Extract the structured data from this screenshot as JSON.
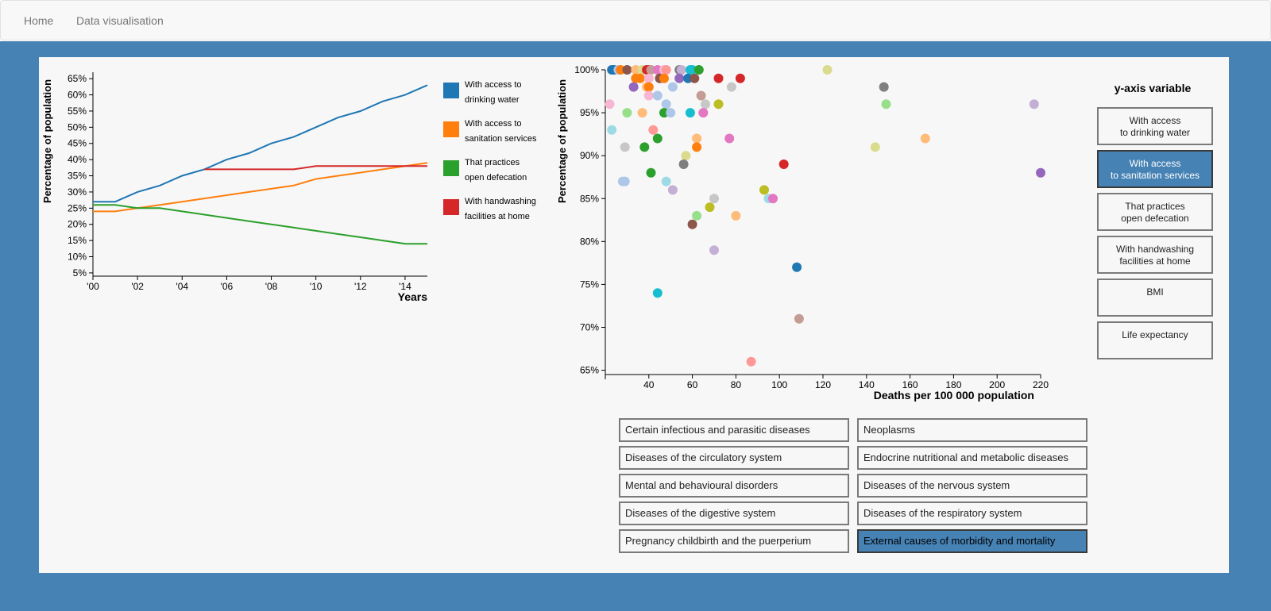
{
  "nav": {
    "home": "Home",
    "dataviz": "Data visualisation"
  },
  "colors": {
    "accent": "#4682b4",
    "water": "#1f77b4",
    "sanitation": "#ff7f0e",
    "defecation": "#2ca02c",
    "handwashing": "#d62728"
  },
  "line_chart_data": {
    "type": "line",
    "ylabel": "Percentage of population",
    "xlabel": "Years",
    "x_ticks": [
      "'00",
      "'02",
      "'04",
      "'06",
      "'08",
      "'10",
      "'12",
      "'14"
    ],
    "y_ticks": [
      "5%",
      "10%",
      "15%",
      "20%",
      "25%",
      "30%",
      "35%",
      "40%",
      "45%",
      "50%",
      "55%",
      "60%",
      "65%"
    ],
    "ylim": [
      4,
      67
    ],
    "xlim": [
      2000,
      2015
    ],
    "series": [
      {
        "name": "With access to drinking water",
        "color": "#1f77b4",
        "x": [
          2000,
          2001,
          2002,
          2003,
          2004,
          2005,
          2006,
          2007,
          2008,
          2009,
          2010,
          2011,
          2012,
          2013,
          2014,
          2015
        ],
        "values": [
          27,
          27,
          30,
          32,
          35,
          37,
          40,
          42,
          45,
          47,
          50,
          53,
          55,
          58,
          60,
          63
        ]
      },
      {
        "name": "With access to sanitation services",
        "color": "#ff7f0e",
        "x": [
          2000,
          2001,
          2002,
          2003,
          2004,
          2005,
          2006,
          2007,
          2008,
          2009,
          2010,
          2011,
          2012,
          2013,
          2014,
          2015
        ],
        "values": [
          24,
          24,
          25,
          26,
          27,
          28,
          29,
          30,
          31,
          32,
          34,
          35,
          36,
          37,
          38,
          39
        ]
      },
      {
        "name": "That practices open defecation",
        "color": "#2ca02c",
        "x": [
          2000,
          2001,
          2002,
          2003,
          2004,
          2005,
          2006,
          2007,
          2008,
          2009,
          2010,
          2011,
          2012,
          2013,
          2014,
          2015
        ],
        "values": [
          26,
          26,
          25,
          25,
          24,
          23,
          22,
          21,
          20,
          19,
          18,
          17,
          16,
          15,
          14,
          14
        ]
      },
      {
        "name": "With handwashing facilities at home",
        "color": "#d62728",
        "x": [
          2005,
          2006,
          2007,
          2008,
          2009,
          2010,
          2011,
          2012,
          2013,
          2014,
          2015
        ],
        "values": [
          37,
          37,
          37,
          37,
          37,
          38,
          38,
          38,
          38,
          38,
          38
        ]
      }
    ],
    "legend": [
      {
        "line1": "With access to",
        "line2": "drinking water",
        "color": "#1f77b4"
      },
      {
        "line1": "With access to",
        "line2": "sanitation services",
        "color": "#ff7f0e"
      },
      {
        "line1": "That practices",
        "line2": "open defecation",
        "color": "#2ca02c"
      },
      {
        "line1": "With handwashing",
        "line2": "facilities at home",
        "color": "#d62728"
      }
    ]
  },
  "chart_data": {
    "type": "scatter",
    "ylabel": "Percentage of population",
    "xlabel": "Deaths per 100 000 population",
    "x_ticks": [
      "40",
      "60",
      "80",
      "100",
      "120",
      "140",
      "160",
      "180",
      "200",
      "220"
    ],
    "y_ticks": [
      "65%",
      "70%",
      "75%",
      "80%",
      "85%",
      "90%",
      "95%",
      "100%"
    ],
    "xlim": [
      20,
      220
    ],
    "ylim": [
      64.5,
      100
    ],
    "points": [
      {
        "x": 23,
        "y": 100,
        "c": "#1f77b4"
      },
      {
        "x": 24,
        "y": 100,
        "c": "#1f77b4"
      },
      {
        "x": 26,
        "y": 100,
        "c": "#aec7e8"
      },
      {
        "x": 27,
        "y": 100,
        "c": "#ff7f0e"
      },
      {
        "x": 30,
        "y": 100,
        "c": "#8c564b"
      },
      {
        "x": 34,
        "y": 100,
        "c": "#ffbb78"
      },
      {
        "x": 37,
        "y": 100,
        "c": "#dbdb8d"
      },
      {
        "x": 39,
        "y": 100,
        "c": "#d62728"
      },
      {
        "x": 40,
        "y": 100,
        "c": "#d62728"
      },
      {
        "x": 41,
        "y": 100,
        "c": "#c49c94"
      },
      {
        "x": 44,
        "y": 100,
        "c": "#e377c2"
      },
      {
        "x": 47,
        "y": 100,
        "c": "#f7b6d2"
      },
      {
        "x": 48,
        "y": 100,
        "c": "#ff9896"
      },
      {
        "x": 54,
        "y": 100,
        "c": "#7f7f7f"
      },
      {
        "x": 55,
        "y": 100,
        "c": "#c5b0d5"
      },
      {
        "x": 59,
        "y": 100,
        "c": "#17becf"
      },
      {
        "x": 60,
        "y": 100,
        "c": "#17becf"
      },
      {
        "x": 63,
        "y": 100,
        "c": "#2ca02c"
      },
      {
        "x": 122,
        "y": 100,
        "c": "#dbdb8d"
      },
      {
        "x": 34,
        "y": 99,
        "c": "#ff7f0e"
      },
      {
        "x": 36,
        "y": 99,
        "c": "#ff7f0e"
      },
      {
        "x": 40,
        "y": 99,
        "c": "#f7b6d2"
      },
      {
        "x": 45,
        "y": 99,
        "c": "#8c564b"
      },
      {
        "x": 47,
        "y": 99,
        "c": "#ff7f0e"
      },
      {
        "x": 54,
        "y": 99,
        "c": "#9467bd"
      },
      {
        "x": 58,
        "y": 99,
        "c": "#1f77b4"
      },
      {
        "x": 61,
        "y": 99,
        "c": "#8c564b"
      },
      {
        "x": 72,
        "y": 99,
        "c": "#d62728"
      },
      {
        "x": 82,
        "y": 99,
        "c": "#d62728"
      },
      {
        "x": 33,
        "y": 98,
        "c": "#9467bd"
      },
      {
        "x": 39,
        "y": 98,
        "c": "#ffbb78"
      },
      {
        "x": 40,
        "y": 98,
        "c": "#ff7f0e"
      },
      {
        "x": 51,
        "y": 98,
        "c": "#aec7e8"
      },
      {
        "x": 78,
        "y": 98,
        "c": "#c7c7c7"
      },
      {
        "x": 148,
        "y": 98,
        "c": "#7f7f7f"
      },
      {
        "x": 40,
        "y": 97,
        "c": "#f7b6d2"
      },
      {
        "x": 44,
        "y": 97,
        "c": "#aec7e8"
      },
      {
        "x": 64,
        "y": 97,
        "c": "#c49c94"
      },
      {
        "x": 22,
        "y": 96,
        "c": "#f7b6d2"
      },
      {
        "x": 48,
        "y": 96,
        "c": "#aec7e8"
      },
      {
        "x": 66,
        "y": 96,
        "c": "#c7c7c7"
      },
      {
        "x": 72,
        "y": 96,
        "c": "#bcbd22"
      },
      {
        "x": 149,
        "y": 96,
        "c": "#98df8a"
      },
      {
        "x": 217,
        "y": 96,
        "c": "#c5b0d5"
      },
      {
        "x": 30,
        "y": 95,
        "c": "#98df8a"
      },
      {
        "x": 37,
        "y": 95,
        "c": "#ffbb78"
      },
      {
        "x": 47,
        "y": 95,
        "c": "#2ca02c"
      },
      {
        "x": 50,
        "y": 95,
        "c": "#aec7e8"
      },
      {
        "x": 59,
        "y": 95,
        "c": "#17becf"
      },
      {
        "x": 65,
        "y": 95,
        "c": "#e377c2"
      },
      {
        "x": 23,
        "y": 93,
        "c": "#9edae5"
      },
      {
        "x": 42,
        "y": 93,
        "c": "#ff9896"
      },
      {
        "x": 44,
        "y": 92,
        "c": "#2ca02c"
      },
      {
        "x": 62,
        "y": 92,
        "c": "#ffbb78"
      },
      {
        "x": 77,
        "y": 92,
        "c": "#e377c2"
      },
      {
        "x": 167,
        "y": 92,
        "c": "#ffbb78"
      },
      {
        "x": 29,
        "y": 91,
        "c": "#c7c7c7"
      },
      {
        "x": 38,
        "y": 91,
        "c": "#2ca02c"
      },
      {
        "x": 62,
        "y": 91,
        "c": "#ff7f0e"
      },
      {
        "x": 144,
        "y": 91,
        "c": "#dbdb8d"
      },
      {
        "x": 57,
        "y": 90,
        "c": "#dbdb8d"
      },
      {
        "x": 56,
        "y": 89,
        "c": "#7f7f7f"
      },
      {
        "x": 102,
        "y": 89,
        "c": "#d62728"
      },
      {
        "x": 41,
        "y": 88,
        "c": "#2ca02c"
      },
      {
        "x": 220,
        "y": 88,
        "c": "#9467bd"
      },
      {
        "x": 28,
        "y": 87,
        "c": "#aec7e8"
      },
      {
        "x": 29,
        "y": 87,
        "c": "#aec7e8"
      },
      {
        "x": 48,
        "y": 87,
        "c": "#9edae5"
      },
      {
        "x": 51,
        "y": 86,
        "c": "#c5b0d5"
      },
      {
        "x": 93,
        "y": 86,
        "c": "#bcbd22"
      },
      {
        "x": 70,
        "y": 85,
        "c": "#c7c7c7"
      },
      {
        "x": 95,
        "y": 85,
        "c": "#9edae5"
      },
      {
        "x": 97,
        "y": 85,
        "c": "#e377c2"
      },
      {
        "x": 68,
        "y": 84,
        "c": "#bcbd22"
      },
      {
        "x": 62,
        "y": 83,
        "c": "#98df8a"
      },
      {
        "x": 80,
        "y": 83,
        "c": "#ffbb78"
      },
      {
        "x": 60,
        "y": 82,
        "c": "#8c564b"
      },
      {
        "x": 70,
        "y": 79,
        "c": "#c5b0d5"
      },
      {
        "x": 108,
        "y": 77,
        "c": "#1f77b4"
      },
      {
        "x": 44,
        "y": 74,
        "c": "#17becf"
      },
      {
        "x": 109,
        "y": 71,
        "c": "#c49c94"
      },
      {
        "x": 87,
        "y": 66,
        "c": "#ff9896"
      }
    ]
  },
  "yvar": {
    "title": "y-axis variable",
    "buttons": [
      {
        "label": "With access\nto drinking water",
        "active": false
      },
      {
        "label": "With access\nto sanitation services",
        "active": true
      },
      {
        "label": "That practices\nopen defecation",
        "active": false
      },
      {
        "label": "With handwashing\nfacilities at home",
        "active": false
      },
      {
        "label": "BMI",
        "active": false
      },
      {
        "label": "Life expectancy",
        "active": false
      }
    ]
  },
  "diseases": {
    "buttons": [
      {
        "label": "Certain infectious and parasitic diseases",
        "active": false
      },
      {
        "label": "Neoplasms",
        "active": false
      },
      {
        "label": "Diseases of the circulatory system",
        "active": false
      },
      {
        "label": "Endocrine nutritional and metabolic diseases",
        "active": false
      },
      {
        "label": "Mental and behavioural disorders",
        "active": false
      },
      {
        "label": "Diseases of the nervous system",
        "active": false
      },
      {
        "label": "Diseases of the digestive system",
        "active": false
      },
      {
        "label": "Diseases of the respiratory system",
        "active": false
      },
      {
        "label": "Pregnancy childbirth and the puerperium",
        "active": false
      },
      {
        "label": "External causes of morbidity and mortality",
        "active": true
      }
    ]
  }
}
